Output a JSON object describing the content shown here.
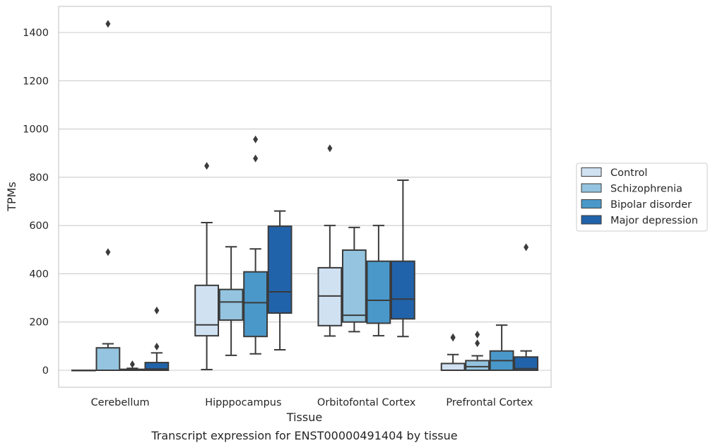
{
  "chart_data": {
    "type": "boxplot",
    "title": "",
    "caption": "Transcript expression for ENST00000491404 by tissue",
    "xlabel": "Tissue",
    "ylabel": "TPMs",
    "ylim": [
      -70,
      1510
    ],
    "yticks": [
      0,
      200,
      400,
      600,
      800,
      1000,
      1200,
      1400
    ],
    "grid": "horizontal",
    "legend_position": "right",
    "categories": [
      "Cerebellum",
      "Hipppocampus",
      "Orbitofontal Cortex",
      "Prefrontal Cortex"
    ],
    "series": [
      {
        "name": "Control",
        "color": "#d0e1f2",
        "boxes": [
          {
            "whislo": 0,
            "q1": 0,
            "med": 0,
            "q3": 0,
            "whishi": 0,
            "fliers": []
          },
          {
            "whislo": 3,
            "q1": 143,
            "med": 188,
            "q3": 352,
            "whishi": 612,
            "fliers": [
              847
            ]
          },
          {
            "whislo": 142,
            "q1": 185,
            "med": 308,
            "q3": 425,
            "whishi": 600,
            "fliers": [
              920
            ]
          },
          {
            "whislo": 0,
            "q1": 0,
            "med": 0,
            "q3": 28,
            "whishi": 65,
            "fliers": [
              135,
              137
            ]
          }
        ]
      },
      {
        "name": "Schizophrenia",
        "color": "#94c4df",
        "boxes": [
          {
            "whislo": 0,
            "q1": 0,
            "med": 0,
            "q3": 93,
            "whishi": 110,
            "fliers": [
              490,
              1436
            ]
          },
          {
            "whislo": 62,
            "q1": 208,
            "med": 283,
            "q3": 335,
            "whishi": 512,
            "fliers": []
          },
          {
            "whislo": 160,
            "q1": 200,
            "med": 228,
            "q3": 498,
            "whishi": 592,
            "fliers": []
          },
          {
            "whislo": 0,
            "q1": 0,
            "med": 15,
            "q3": 40,
            "whishi": 60,
            "fliers": [
              112,
              148
            ]
          }
        ]
      },
      {
        "name": "Bipolar disorder",
        "color": "#4a98c9",
        "boxes": [
          {
            "whislo": 0,
            "q1": 0,
            "med": 0,
            "q3": 4,
            "whishi": 8,
            "fliers": [
              25
            ]
          },
          {
            "whislo": 68,
            "q1": 140,
            "med": 280,
            "q3": 408,
            "whishi": 503,
            "fliers": [
              878,
              957
            ]
          },
          {
            "whislo": 143,
            "q1": 195,
            "med": 290,
            "q3": 452,
            "whishi": 600,
            "fliers": []
          },
          {
            "whislo": 0,
            "q1": 0,
            "med": 40,
            "q3": 80,
            "whishi": 187,
            "fliers": []
          }
        ]
      },
      {
        "name": "Major depression",
        "color": "#2163aa",
        "boxes": [
          {
            "whislo": 0,
            "q1": 0,
            "med": 5,
            "q3": 32,
            "whishi": 72,
            "fliers": [
              98,
              248
            ]
          },
          {
            "whislo": 85,
            "q1": 237,
            "med": 325,
            "q3": 597,
            "whishi": 660,
            "fliers": []
          },
          {
            "whislo": 140,
            "q1": 213,
            "med": 295,
            "q3": 452,
            "whishi": 788,
            "fliers": []
          },
          {
            "whislo": 0,
            "q1": 0,
            "med": 7,
            "q3": 55,
            "whishi": 80,
            "fliers": [
              510
            ]
          }
        ]
      }
    ]
  }
}
